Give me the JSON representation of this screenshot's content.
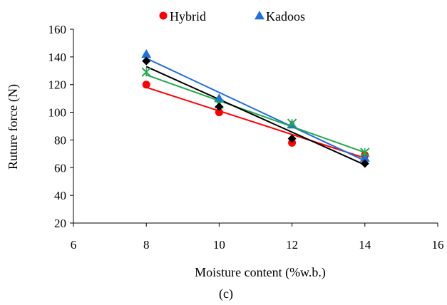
{
  "chart_data": {
    "type": "scatter",
    "title": "",
    "xlabel": "Moisture content (%w.b.)",
    "ylabel": "Ruture force (N)",
    "panel_label": "(c)",
    "xlim": [
      6,
      16
    ],
    "ylim": [
      20,
      160
    ],
    "x_ticks": [
      6,
      8,
      10,
      12,
      14,
      16
    ],
    "y_ticks": [
      20,
      40,
      60,
      80,
      100,
      120,
      140,
      160
    ],
    "grid": false,
    "legend_position": "top",
    "series": [
      {
        "name": "Hybrid",
        "marker": "circle",
        "color": "#ff0000",
        "x": [
          8,
          10,
          12,
          14
        ],
        "y": [
          120,
          100,
          78,
          69
        ],
        "trend": [
          118,
          101,
          84,
          67
        ]
      },
      {
        "name": "Kadoos",
        "marker": "triangle",
        "color": "#1f6fe0",
        "x": [
          8,
          10,
          12,
          14
        ],
        "y": [
          142,
          110,
          91,
          67
        ],
        "trend": [
          139,
          114,
          90,
          65
        ]
      },
      {
        "marker": "x",
        "color": "#22a84a",
        "x": [
          8,
          10,
          12,
          14
        ],
        "y": [
          129,
          106,
          92,
          71
        ],
        "trend": [
          127,
          109,
          90,
          71
        ]
      },
      {
        "marker": "diamond",
        "color": "#000000",
        "x": [
          8,
          10,
          12,
          14
        ],
        "y": [
          137,
          104,
          81,
          63
        ],
        "trend": [
          133,
          109,
          86,
          62
        ]
      }
    ]
  }
}
